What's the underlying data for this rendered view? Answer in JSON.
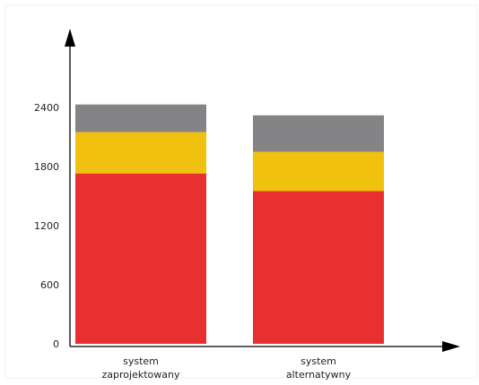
{
  "chart_data": {
    "type": "bar",
    "stacked": true,
    "title": "",
    "xlabel": "",
    "ylabel": "",
    "ylim": [
      0,
      3000
    ],
    "yticks": [
      0,
      600,
      1200,
      1800,
      2400
    ],
    "grid": false,
    "categories": [
      [
        "system",
        "zaprojektowany"
      ],
      [
        "system",
        "alternatywny"
      ]
    ],
    "series": [
      {
        "color": "#e83030",
        "values": [
          1730,
          1550
        ]
      },
      {
        "color": "#f0c10f",
        "values": [
          420,
          400
        ]
      },
      {
        "color": "#848487",
        "values": [
          280,
          370
        ]
      }
    ]
  }
}
